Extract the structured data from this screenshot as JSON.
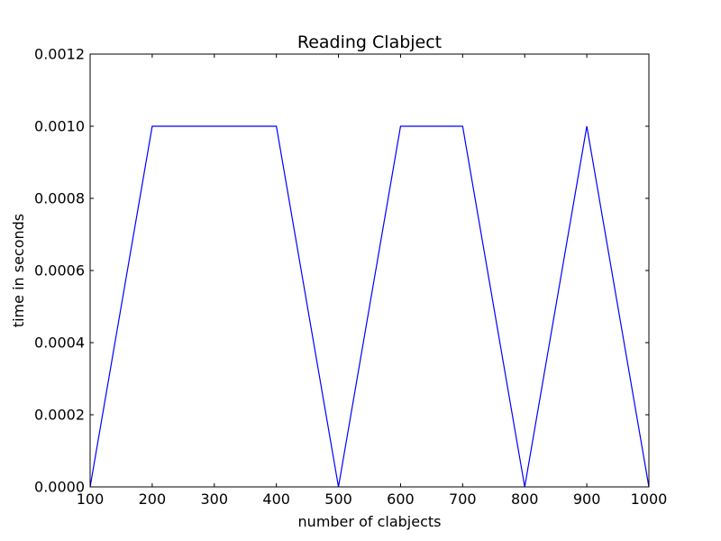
{
  "chart_data": {
    "type": "line",
    "title": "Reading Clabject",
    "xlabel": "number of clabjects",
    "ylabel": "time in seconds",
    "xlim": [
      100,
      1000
    ],
    "ylim": [
      0,
      0.0012
    ],
    "x_ticks": [
      100,
      200,
      300,
      400,
      500,
      600,
      700,
      800,
      900,
      1000
    ],
    "x_tick_labels": [
      "100",
      "200",
      "300",
      "400",
      "500",
      "600",
      "700",
      "800",
      "900",
      "1000"
    ],
    "y_ticks": [
      0,
      0.0002,
      0.0004,
      0.0006,
      0.0008,
      0.001,
      0.0012
    ],
    "y_tick_labels": [
      "0.0000",
      "0.0002",
      "0.0004",
      "0.0006",
      "0.0008",
      "0.0010",
      "0.0012"
    ],
    "grid": false,
    "legend": "none",
    "series": [
      {
        "color": "#0000ff",
        "x": [
          100,
          200,
          300,
          400,
          500,
          600,
          700,
          800,
          900,
          1000
        ],
        "y": [
          0,
          0.001,
          0.001,
          0.001,
          0,
          0.001,
          0.001,
          0,
          0.001,
          0
        ]
      }
    ]
  }
}
